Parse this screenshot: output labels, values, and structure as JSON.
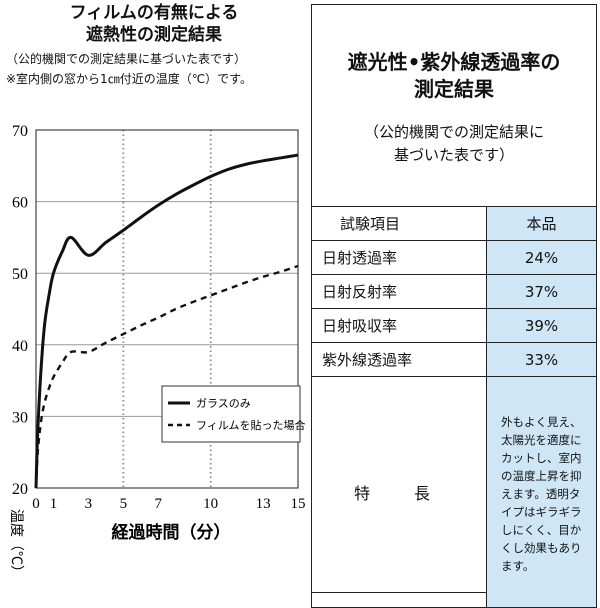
{
  "chart_header": {
    "title_line1": "フィルムの有無による",
    "title_line2": "遮熱性の測定結果",
    "note1": "（公的機関での測定結果に基づいた表です）",
    "note2": "※室内側の窓から1㎝付近の温度（℃）です。"
  },
  "chart_data": {
    "type": "line",
    "xlabel": "経過時間（分）",
    "ylabel": "温度（℃）",
    "xlim": [
      0,
      15
    ],
    "ylim": [
      20,
      70
    ],
    "x_ticks": [
      "0",
      "1",
      "3",
      "5",
      "7",
      "10",
      "13",
      "15"
    ],
    "x_tick_values": [
      0,
      1,
      3,
      5,
      7,
      10,
      13,
      15
    ],
    "y_ticks": [
      "20",
      "30",
      "40",
      "50",
      "60",
      "70"
    ],
    "y_tick_values": [
      20,
      30,
      40,
      50,
      60,
      70
    ],
    "vertical_gridlines_at": [
      5,
      10
    ],
    "horizontal_grid": true,
    "legend_position": "bottom-right",
    "series": [
      {
        "name": "ガラスのみ",
        "style": "solid",
        "color": "#111111",
        "x": [
          0,
          0.1,
          0.3,
          0.5,
          0.75,
          1,
          1.5,
          2,
          3,
          4,
          5,
          6,
          7,
          8,
          9,
          10,
          11,
          12,
          13,
          14,
          15
        ],
        "y": [
          20,
          28,
          37,
          43,
          47,
          50,
          53,
          55,
          52.5,
          54.3,
          56,
          57.8,
          59.5,
          61,
          62.3,
          63.5,
          64.5,
          65.2,
          65.7,
          66.1,
          66.5
        ]
      },
      {
        "name": "フィルムを貼った場合",
        "style": "dashed",
        "color": "#111111",
        "x": [
          0,
          0.1,
          0.3,
          0.5,
          0.75,
          1,
          1.5,
          2,
          3,
          4,
          5,
          6,
          7,
          8,
          9,
          10,
          11,
          12,
          13,
          14,
          15
        ],
        "y": [
          20,
          25,
          29.5,
          32,
          34,
          35.5,
          37.5,
          39,
          39,
          40.3,
          41.5,
          42.7,
          43.8,
          45,
          46,
          46.9,
          47.8,
          48.7,
          49.5,
          50.2,
          51
        ]
      }
    ]
  },
  "panel": {
    "title_line1": "遮光性•紫外線透過率の",
    "title_line2": "測定結果",
    "sub_line1": "（公的機関での測定結果に",
    "sub_line2": "基づいた表です）",
    "header_item": "試験項目",
    "header_value": "本品",
    "rows": [
      {
        "label": "日射透過率",
        "value": "24%"
      },
      {
        "label": "日射反射率",
        "value": "37%"
      },
      {
        "label": "日射吸収率",
        "value": "39%"
      },
      {
        "label": "紫外線透過率",
        "value": "33%"
      }
    ],
    "feature_label": "特　長",
    "feature_text": "外もよく見え、太陽光を適度にカットし、室内の温度上昇を抑えます。透明タイプはギラギラしにくく、目かくし効果もあります。"
  }
}
